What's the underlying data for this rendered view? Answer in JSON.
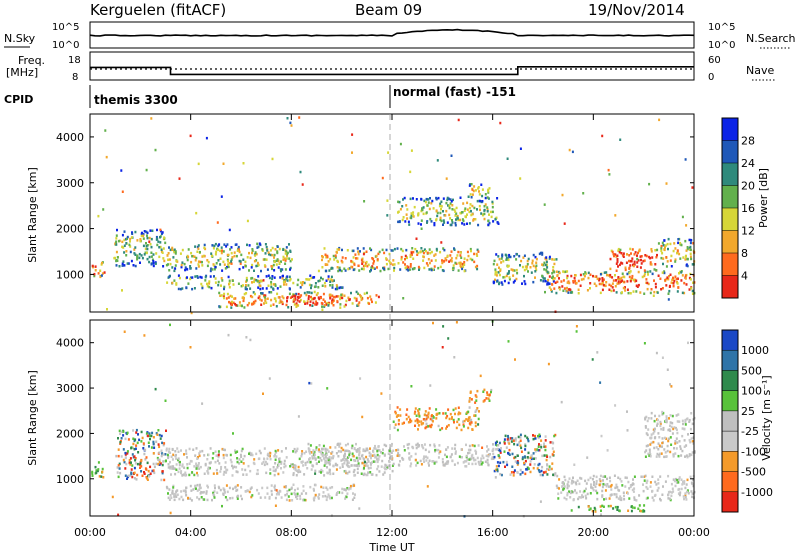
{
  "header": {
    "station": "Kerguelen (fitACF)",
    "beam": "Beam 09",
    "date": "19/Nov/2014"
  },
  "side_labels": {
    "nsky": "N.Sky",
    "nsky_hi": "10^5",
    "nsky_lo": "10^0",
    "nsearch": "N.Search",
    "nsearch_hi": "10^5",
    "nsearch_lo": "10^0",
    "freq": "Freq.",
    "freq_unit": "[MHz]",
    "freq_hi": "18",
    "freq_lo": "8",
    "nave": "Nave",
    "nave_hi": "60",
    "nave_lo": "0",
    "cpid": "CPID",
    "cpid_left": "themis 3300",
    "cpid_right": "normal (fast) -151"
  },
  "chart_data": [
    {
      "type": "heatmap",
      "panel": "power",
      "ylabel": "Slant Range [km]",
      "yticks": [
        "4000",
        "3000",
        "2000",
        "1000"
      ],
      "ylim": [
        180,
        4500
      ],
      "colorbar_label": "Power [dB]",
      "colorbar_ticks": [
        "28",
        "24",
        "20",
        "16",
        "12",
        "8",
        "4"
      ],
      "colorbar_colors": [
        "#0b23e6",
        "#1f58b8",
        "#2f8a7c",
        "#62b04c",
        "#d6d637",
        "#f2a82c",
        "#ff6a1e",
        "#e8281a"
      ],
      "regions": [
        {
          "t": [
            0.0,
            0.6
          ],
          "r": [
            950,
            1300
          ],
          "level": 0.8
        },
        {
          "t": [
            0.9,
            3.0
          ],
          "r": [
            1200,
            2000
          ],
          "level": 0.45
        },
        {
          "t": [
            3.0,
            8.0
          ],
          "r": [
            1100,
            1700
          ],
          "level": 0.55
        },
        {
          "t": [
            3.0,
            10.0
          ],
          "r": [
            700,
            1000
          ],
          "level": 0.5
        },
        {
          "t": [
            5.0,
            11.5
          ],
          "r": [
            300,
            650
          ],
          "level": 0.75
        },
        {
          "t": [
            8.0,
            10.0
          ],
          "r": [
            350,
            600
          ],
          "level": 0.95
        },
        {
          "t": [
            9.0,
            15.5
          ],
          "r": [
            1100,
            1600
          ],
          "level": 0.7
        },
        {
          "t": [
            12.2,
            16.2
          ],
          "r": [
            2100,
            2700
          ],
          "level": 0.5
        },
        {
          "t": [
            15.0,
            16.0
          ],
          "r": [
            2700,
            3000
          ],
          "level": 0.6
        },
        {
          "t": [
            16.0,
            18.5
          ],
          "r": [
            800,
            1500
          ],
          "level": 0.5
        },
        {
          "t": [
            18.0,
            24.0
          ],
          "r": [
            600,
            1100
          ],
          "level": 0.8
        },
        {
          "t": [
            20.5,
            22.5
          ],
          "r": [
            1100,
            1600
          ],
          "level": 0.95
        },
        {
          "t": [
            22.5,
            24.0
          ],
          "r": [
            1200,
            1800
          ],
          "level": 0.55
        }
      ]
    },
    {
      "type": "heatmap",
      "panel": "velocity",
      "ylabel": "Slant Range [km]",
      "yticks": [
        "4000",
        "3000",
        "2000",
        "1000"
      ],
      "ylim": [
        180,
        4500
      ],
      "colorbar_label": "Velocity [m s⁻¹]",
      "colorbar_ticks": [
        "1000",
        "500",
        "100",
        "25",
        "-25",
        "-100",
        "-500",
        "-1000"
      ],
      "colorbar_colors": [
        "#1a48c6",
        "#2f74a8",
        "#2f8a4c",
        "#58c23a",
        "#bfbfbf",
        "#c9c9c9",
        "#f49a2a",
        "#ff6a1e",
        "#e8281a"
      ],
      "regions": [
        {
          "t": [
            0.0,
            0.5
          ],
          "r": [
            1000,
            1400
          ],
          "kind": "green"
        },
        {
          "t": [
            1.0,
            3.0
          ],
          "r": [
            1000,
            2100
          ],
          "kind": "mix"
        },
        {
          "t": [
            3.0,
            12.0
          ],
          "r": [
            1100,
            1700
          ],
          "kind": "grey"
        },
        {
          "t": [
            3.0,
            10.5
          ],
          "r": [
            550,
            900
          ],
          "kind": "grey"
        },
        {
          "t": [
            8.5,
            16.0
          ],
          "r": [
            1300,
            1800
          ],
          "kind": "grey"
        },
        {
          "t": [
            12.0,
            15.5
          ],
          "r": [
            2100,
            2600
          ],
          "kind": "orange"
        },
        {
          "t": [
            15.0,
            16.0
          ],
          "r": [
            2700,
            3000
          ],
          "kind": "orange"
        },
        {
          "t": [
            16.0,
            18.5
          ],
          "r": [
            1100,
            2000
          ],
          "kind": "mix"
        },
        {
          "t": [
            18.5,
            24.0
          ],
          "r": [
            550,
            1100
          ],
          "kind": "grey"
        },
        {
          "t": [
            19.0,
            22.0
          ],
          "r": [
            300,
            450
          ],
          "kind": "green"
        },
        {
          "t": [
            22.0,
            24.0
          ],
          "r": [
            1500,
            2500
          ],
          "kind": "grey"
        }
      ]
    }
  ],
  "freq_series": {
    "points": [
      [
        0,
        12.5
      ],
      [
        3.2,
        12.5
      ],
      [
        3.2,
        10.0
      ],
      [
        17.0,
        10.0
      ],
      [
        17.0,
        12.7
      ],
      [
        24,
        12.7
      ]
    ]
  },
  "x_axis": {
    "ticks": [
      "00:00",
      "04:00",
      "08:00",
      "12:00",
      "16:00",
      "20:00",
      "00:00"
    ],
    "label": "Time UT",
    "range_hours": [
      0,
      24
    ]
  }
}
